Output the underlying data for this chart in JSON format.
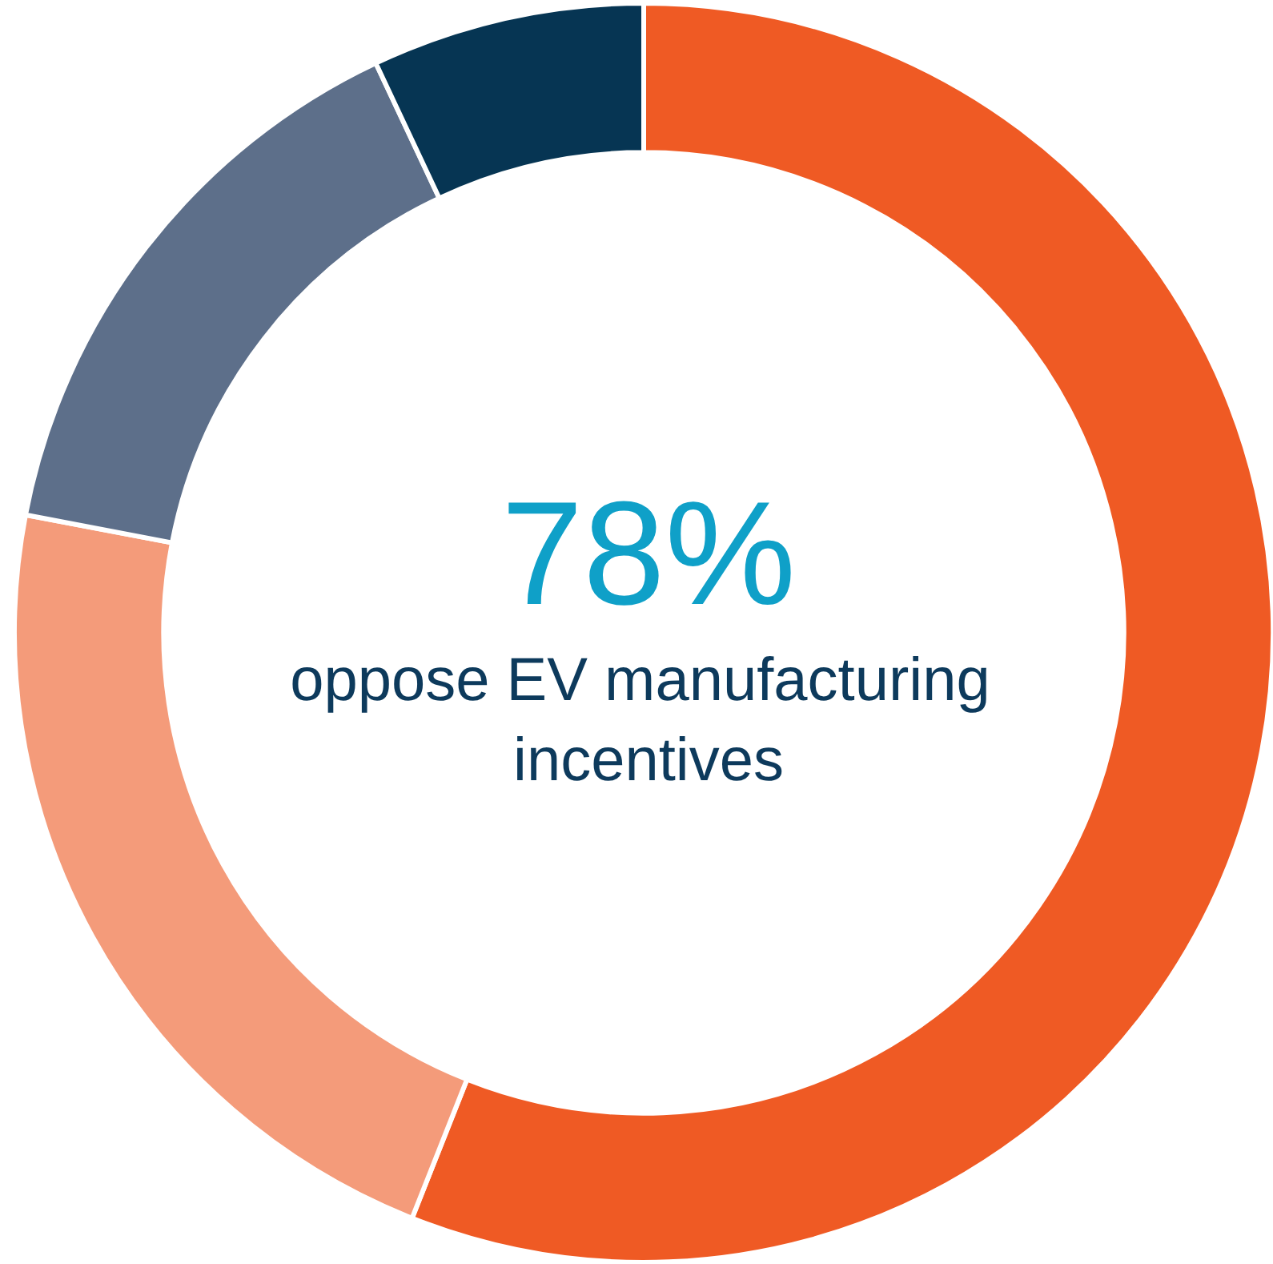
{
  "chart_data": {
    "type": "donut",
    "categories": [
      null,
      null,
      null,
      null
    ],
    "values": [
      56,
      22,
      15,
      7
    ],
    "colors": [
      "#ef5a24",
      "#f49b7a",
      "#5d6f8a",
      "#063553"
    ],
    "annotations": [
      "78%",
      "oppose EV manufacturing incentives"
    ]
  }
}
